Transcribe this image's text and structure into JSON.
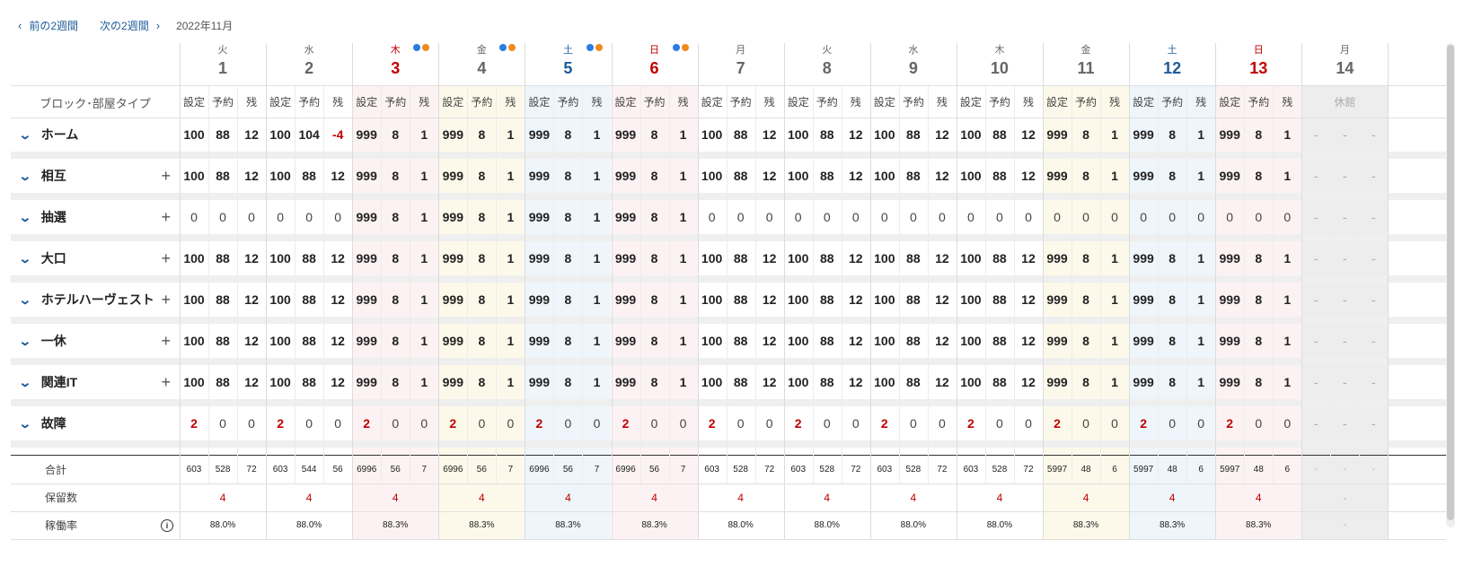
{
  "nav": {
    "prev_label": "前の2週間",
    "next_label": "次の2週間",
    "month": "2022年11月"
  },
  "header": {
    "block_label": "ブロック･部屋タイプ",
    "sub_headers": [
      "設定",
      "予約",
      "残"
    ],
    "closed_label": "休館"
  },
  "days": [
    {
      "wd": "火",
      "d": "1",
      "type": "normal",
      "dots": false,
      "closed": false
    },
    {
      "wd": "水",
      "d": "2",
      "type": "normal",
      "dots": false,
      "closed": false
    },
    {
      "wd": "木",
      "d": "3",
      "type": "holiday",
      "dots": true,
      "closed": false
    },
    {
      "wd": "金",
      "d": "4",
      "type": "fri",
      "dots": true,
      "closed": false
    },
    {
      "wd": "土",
      "d": "5",
      "type": "sat",
      "dots": true,
      "closed": false
    },
    {
      "wd": "日",
      "d": "6",
      "type": "sun",
      "dots": true,
      "closed": false
    },
    {
      "wd": "月",
      "d": "7",
      "type": "normal",
      "dots": false,
      "closed": false
    },
    {
      "wd": "火",
      "d": "8",
      "type": "normal",
      "dots": false,
      "closed": false
    },
    {
      "wd": "水",
      "d": "9",
      "type": "normal",
      "dots": false,
      "closed": false
    },
    {
      "wd": "木",
      "d": "10",
      "type": "normal",
      "dots": false,
      "closed": false
    },
    {
      "wd": "金",
      "d": "11",
      "type": "fri",
      "dots": false,
      "closed": false
    },
    {
      "wd": "土",
      "d": "12",
      "type": "sat",
      "dots": false,
      "closed": false
    },
    {
      "wd": "日",
      "d": "13",
      "type": "sun",
      "dots": false,
      "closed": false
    },
    {
      "wd": "月",
      "d": "14",
      "type": "normal",
      "dots": false,
      "closed": true
    }
  ],
  "rows": [
    {
      "label": "ホーム",
      "plus": false,
      "values": [
        [
          "100",
          "88",
          "12"
        ],
        [
          "100",
          "104",
          "-4"
        ],
        [
          "999",
          "8",
          "1"
        ],
        [
          "999",
          "8",
          "1"
        ],
        [
          "999",
          "8",
          "1"
        ],
        [
          "999",
          "8",
          "1"
        ],
        [
          "100",
          "88",
          "12"
        ],
        [
          "100",
          "88",
          "12"
        ],
        [
          "100",
          "88",
          "12"
        ],
        [
          "100",
          "88",
          "12"
        ],
        [
          "999",
          "8",
          "1"
        ],
        [
          "999",
          "8",
          "1"
        ],
        [
          "999",
          "8",
          "1"
        ],
        [
          "-",
          "-",
          "-"
        ]
      ]
    },
    {
      "label": "相互",
      "plus": true,
      "values": [
        [
          "100",
          "88",
          "12"
        ],
        [
          "100",
          "88",
          "12"
        ],
        [
          "999",
          "8",
          "1"
        ],
        [
          "999",
          "8",
          "1"
        ],
        [
          "999",
          "8",
          "1"
        ],
        [
          "999",
          "8",
          "1"
        ],
        [
          "100",
          "88",
          "12"
        ],
        [
          "100",
          "88",
          "12"
        ],
        [
          "100",
          "88",
          "12"
        ],
        [
          "100",
          "88",
          "12"
        ],
        [
          "999",
          "8",
          "1"
        ],
        [
          "999",
          "8",
          "1"
        ],
        [
          "999",
          "8",
          "1"
        ],
        [
          "-",
          "-",
          "-"
        ]
      ]
    },
    {
      "label": "抽選",
      "plus": true,
      "values": [
        [
          "0",
          "0",
          "0"
        ],
        [
          "0",
          "0",
          "0"
        ],
        [
          "999",
          "8",
          "1"
        ],
        [
          "999",
          "8",
          "1"
        ],
        [
          "999",
          "8",
          "1"
        ],
        [
          "999",
          "8",
          "1"
        ],
        [
          "0",
          "0",
          "0"
        ],
        [
          "0",
          "0",
          "0"
        ],
        [
          "0",
          "0",
          "0"
        ],
        [
          "0",
          "0",
          "0"
        ],
        [
          "0",
          "0",
          "0"
        ],
        [
          "0",
          "0",
          "0"
        ],
        [
          "0",
          "0",
          "0"
        ],
        [
          "-",
          "-",
          "-"
        ]
      ]
    },
    {
      "label": "大口",
      "plus": true,
      "values": [
        [
          "100",
          "88",
          "12"
        ],
        [
          "100",
          "88",
          "12"
        ],
        [
          "999",
          "8",
          "1"
        ],
        [
          "999",
          "8",
          "1"
        ],
        [
          "999",
          "8",
          "1"
        ],
        [
          "999",
          "8",
          "1"
        ],
        [
          "100",
          "88",
          "12"
        ],
        [
          "100",
          "88",
          "12"
        ],
        [
          "100",
          "88",
          "12"
        ],
        [
          "100",
          "88",
          "12"
        ],
        [
          "999",
          "8",
          "1"
        ],
        [
          "999",
          "8",
          "1"
        ],
        [
          "999",
          "8",
          "1"
        ],
        [
          "-",
          "-",
          "-"
        ]
      ]
    },
    {
      "label": "ホテルハーヴェスト",
      "plus": true,
      "values": [
        [
          "100",
          "88",
          "12"
        ],
        [
          "100",
          "88",
          "12"
        ],
        [
          "999",
          "8",
          "1"
        ],
        [
          "999",
          "8",
          "1"
        ],
        [
          "999",
          "8",
          "1"
        ],
        [
          "999",
          "8",
          "1"
        ],
        [
          "100",
          "88",
          "12"
        ],
        [
          "100",
          "88",
          "12"
        ],
        [
          "100",
          "88",
          "12"
        ],
        [
          "100",
          "88",
          "12"
        ],
        [
          "999",
          "8",
          "1"
        ],
        [
          "999",
          "8",
          "1"
        ],
        [
          "999",
          "8",
          "1"
        ],
        [
          "-",
          "-",
          "-"
        ]
      ]
    },
    {
      "label": "一休",
      "plus": true,
      "values": [
        [
          "100",
          "88",
          "12"
        ],
        [
          "100",
          "88",
          "12"
        ],
        [
          "999",
          "8",
          "1"
        ],
        [
          "999",
          "8",
          "1"
        ],
        [
          "999",
          "8",
          "1"
        ],
        [
          "999",
          "8",
          "1"
        ],
        [
          "100",
          "88",
          "12"
        ],
        [
          "100",
          "88",
          "12"
        ],
        [
          "100",
          "88",
          "12"
        ],
        [
          "100",
          "88",
          "12"
        ],
        [
          "999",
          "8",
          "1"
        ],
        [
          "999",
          "8",
          "1"
        ],
        [
          "999",
          "8",
          "1"
        ],
        [
          "-",
          "-",
          "-"
        ]
      ]
    },
    {
      "label": "関連IT",
      "plus": true,
      "values": [
        [
          "100",
          "88",
          "12"
        ],
        [
          "100",
          "88",
          "12"
        ],
        [
          "999",
          "8",
          "1"
        ],
        [
          "999",
          "8",
          "1"
        ],
        [
          "999",
          "8",
          "1"
        ],
        [
          "999",
          "8",
          "1"
        ],
        [
          "100",
          "88",
          "12"
        ],
        [
          "100",
          "88",
          "12"
        ],
        [
          "100",
          "88",
          "12"
        ],
        [
          "100",
          "88",
          "12"
        ],
        [
          "999",
          "8",
          "1"
        ],
        [
          "999",
          "8",
          "1"
        ],
        [
          "999",
          "8",
          "1"
        ],
        [
          "-",
          "-",
          "-"
        ]
      ]
    },
    {
      "label": "故障",
      "plus": false,
      "values": [
        [
          "2",
          "0",
          "0"
        ],
        [
          "2",
          "0",
          "0"
        ],
        [
          "2",
          "0",
          "0"
        ],
        [
          "2",
          "0",
          "0"
        ],
        [
          "2",
          "0",
          "0"
        ],
        [
          "2",
          "0",
          "0"
        ],
        [
          "2",
          "0",
          "0"
        ],
        [
          "2",
          "0",
          "0"
        ],
        [
          "2",
          "0",
          "0"
        ],
        [
          "2",
          "0",
          "0"
        ],
        [
          "2",
          "0",
          "0"
        ],
        [
          "2",
          "0",
          "0"
        ],
        [
          "2",
          "0",
          "0"
        ],
        [
          "-",
          "-",
          "-"
        ]
      ]
    }
  ],
  "totals": {
    "label": "合計",
    "values": [
      [
        "603",
        "528",
        "72"
      ],
      [
        "603",
        "544",
        "56"
      ],
      [
        "6996",
        "56",
        "7"
      ],
      [
        "6996",
        "56",
        "7"
      ],
      [
        "6996",
        "56",
        "7"
      ],
      [
        "6996",
        "56",
        "7"
      ],
      [
        "603",
        "528",
        "72"
      ],
      [
        "603",
        "528",
        "72"
      ],
      [
        "603",
        "528",
        "72"
      ],
      [
        "603",
        "528",
        "72"
      ],
      [
        "5997",
        "48",
        "6"
      ],
      [
        "5997",
        "48",
        "6"
      ],
      [
        "5997",
        "48",
        "6"
      ],
      [
        "-",
        "-",
        "-"
      ]
    ]
  },
  "held": {
    "label": "保留数",
    "values": [
      "4",
      "4",
      "4",
      "4",
      "4",
      "4",
      "4",
      "4",
      "4",
      "4",
      "4",
      "4",
      "4",
      "-"
    ]
  },
  "occupancy": {
    "label": "稼働率",
    "values": [
      "88.0%",
      "88.0%",
      "88.3%",
      "88.3%",
      "88.3%",
      "88.3%",
      "88.0%",
      "88.0%",
      "88.0%",
      "88.0%",
      "88.3%",
      "88.3%",
      "88.3%",
      "-"
    ]
  },
  "colors": {
    "holiday_bg": "#fdf2f3",
    "fri_bg": "#fdf9ea",
    "sat_bg": "#eef5fb",
    "sun_bg": "#fdf2f3",
    "closed_bg": "#ededed",
    "dot_blue": "#2a7de1",
    "dot_orange": "#ef8a1f",
    "red": "#c00000",
    "blue": "#1d5b9a"
  }
}
